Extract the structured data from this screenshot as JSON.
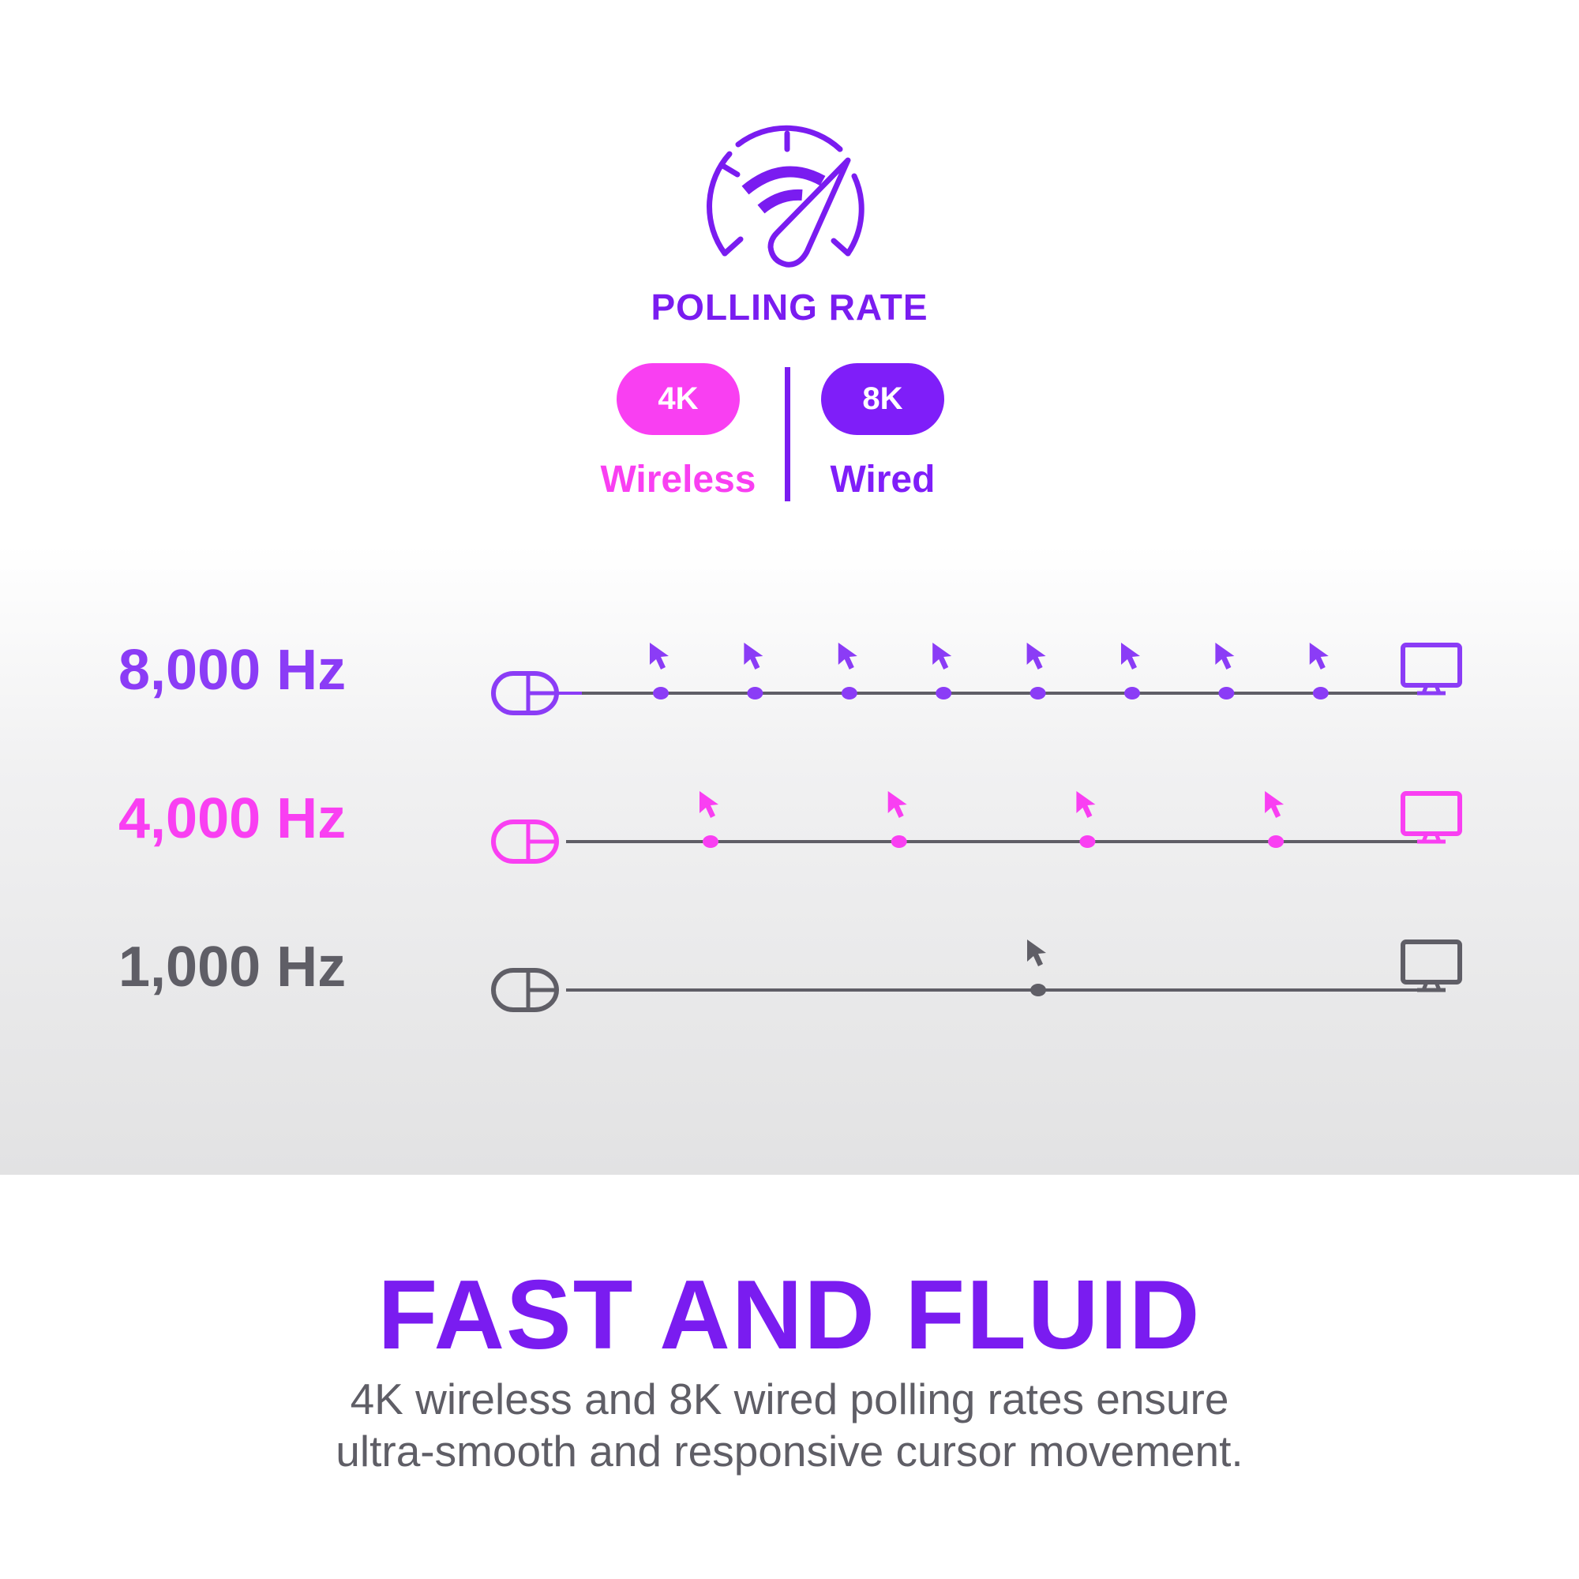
{
  "colors": {
    "brand_purple": "#7a1cf0",
    "purple_8k": "#8b3cf6",
    "pink_4k": "#f93ff2",
    "gray_1k": "#5f5e66",
    "line": "#5f5e66"
  },
  "header": {
    "icon": "speedometer-gauge-icon",
    "title": "POLLING RATE"
  },
  "modes": [
    {
      "badge": "4K",
      "label": "Wireless",
      "color": "#f93ff2"
    },
    {
      "badge": "8K",
      "label": "Wired",
      "color": "#7f1ef9"
    }
  ],
  "rows": [
    {
      "label": "8,000 Hz",
      "color": "#8b3cf6",
      "updates": 8
    },
    {
      "label": "4,000 Hz",
      "color": "#f93ff2",
      "updates": 4
    },
    {
      "label": "1,000 Hz",
      "color": "#5f5e66",
      "updates": 1
    }
  ],
  "footer": {
    "headline": "FAST AND FLUID",
    "description_lines": [
      "4K wireless and 8K wired polling rates ensure",
      "ultra-smooth and responsive cursor movement."
    ]
  }
}
